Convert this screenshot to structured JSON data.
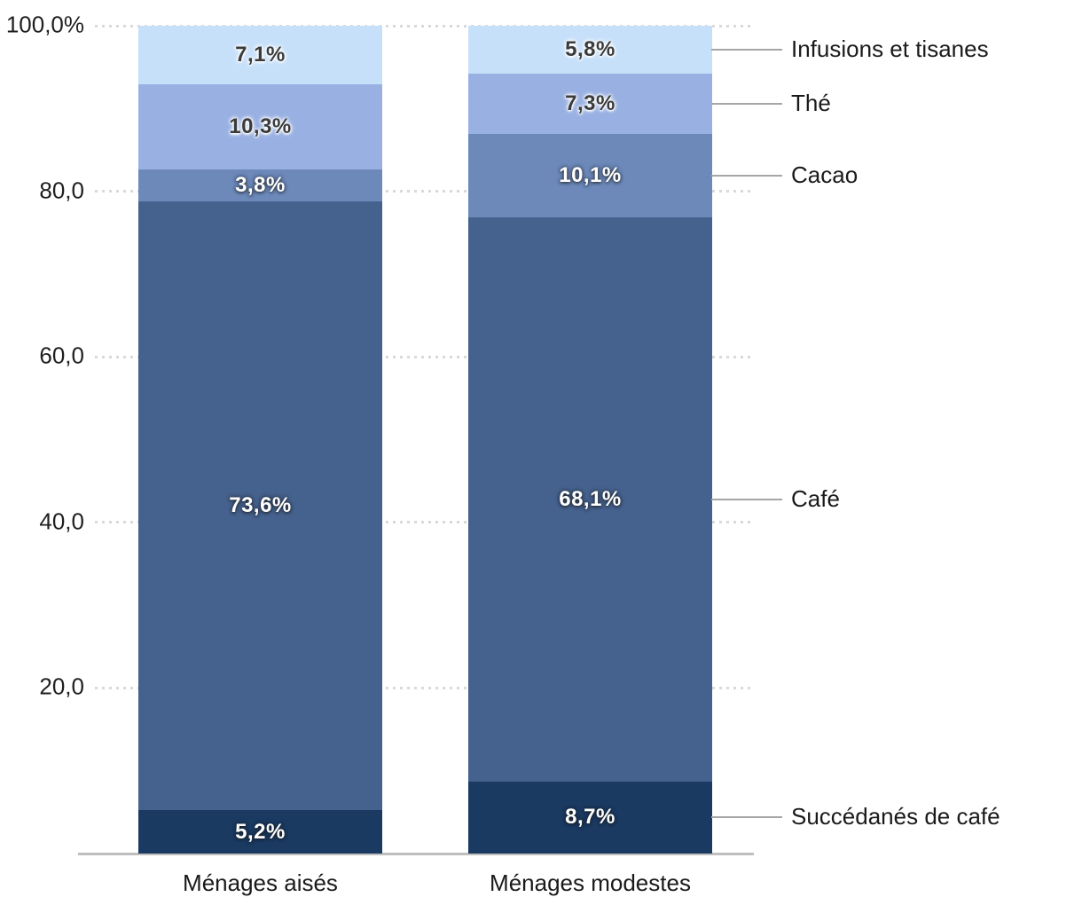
{
  "chart_data": {
    "type": "bar",
    "subtype": "stacked-100-percent",
    "title": "",
    "categories": [
      "Ménages aisés",
      "Ménages modestes"
    ],
    "series": [
      {
        "name": "Succédanés de café",
        "color": "#1b3a62",
        "label_color": "#ffffff",
        "values": [
          5.2,
          8.7
        ],
        "value_labels": [
          "5,2%",
          "8,7%"
        ]
      },
      {
        "name": "Café",
        "color": "#45618d",
        "label_color": "#ffffff",
        "values": [
          73.6,
          68.1
        ],
        "value_labels": [
          "73,6%",
          "68,1%"
        ]
      },
      {
        "name": "Cacao",
        "color": "#6c89ba",
        "label_color": "#ffffff",
        "values": [
          3.8,
          10.1
        ],
        "value_labels": [
          "3,8%",
          "10,1%"
        ]
      },
      {
        "name": "Thé",
        "color": "#99b1e2",
        "label_color": "#3b3b3b",
        "values": [
          10.3,
          7.3
        ],
        "value_labels": [
          "10,3%",
          "7,3%"
        ]
      },
      {
        "name": "Infusions et tisanes",
        "color": "#c7e0fa",
        "label_color": "#3b3b3b",
        "values": [
          7.1,
          5.8
        ],
        "value_labels": [
          "7,1%",
          "5,8%"
        ]
      }
    ],
    "y_axis": {
      "min": 0,
      "max": 100,
      "tick_values": [
        100,
        80,
        60,
        40,
        20
      ],
      "tick_labels": [
        "100,0%",
        "80,0",
        "60,0",
        "40,0",
        "20,0"
      ],
      "grid": "dotted"
    },
    "legend_position": "right-annotations",
    "colors": {
      "gridline": "#d9d9d9",
      "axis_line": "#bfbfbf",
      "connector": "#a6a6a6",
      "axis_text": "#1f1f1f",
      "annotation_text": "#1a1a1a"
    }
  }
}
